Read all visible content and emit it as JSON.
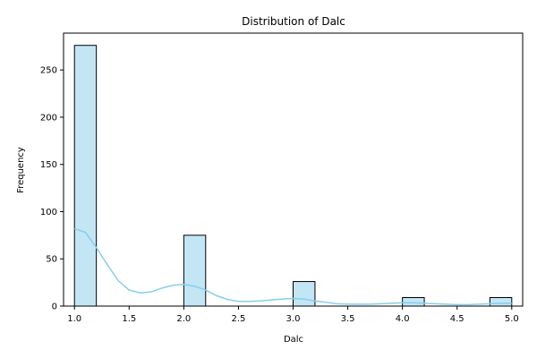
{
  "chart_data": {
    "type": "bar",
    "title": "Distribution of Dalc",
    "xlabel": "Dalc",
    "ylabel": "Frequency",
    "xlim": [
      0.9,
      5.1
    ],
    "ylim": [
      0,
      289
    ],
    "x_ticks": [
      1.0,
      1.5,
      2.0,
      2.5,
      3.0,
      3.5,
      4.0,
      4.5,
      5.0
    ],
    "x_tick_labels": [
      "1.0",
      "1.5",
      "2.0",
      "2.5",
      "3.0",
      "3.5",
      "4.0",
      "4.5",
      "5.0"
    ],
    "y_ticks": [
      0,
      50,
      100,
      150,
      200,
      250
    ],
    "y_tick_labels": [
      "0",
      "50",
      "100",
      "150",
      "200",
      "250"
    ],
    "bars": [
      {
        "x0": 1.0,
        "x1": 1.2,
        "value": 276
      },
      {
        "x0": 2.0,
        "x1": 2.2,
        "value": 75
      },
      {
        "x0": 3.0,
        "x1": 3.2,
        "value": 26
      },
      {
        "x0": 4.0,
        "x1": 4.2,
        "value": 9
      },
      {
        "x0": 4.8,
        "x1": 5.0,
        "value": 9
      }
    ],
    "bar_color": "#87ceeb",
    "bar_opacity": 0.5,
    "bar_edge_color": "#000000",
    "kde": {
      "color": "#87ceeb",
      "points": [
        [
          1.0,
          82
        ],
        [
          1.1,
          78
        ],
        [
          1.2,
          62
        ],
        [
          1.3,
          44
        ],
        [
          1.4,
          27
        ],
        [
          1.5,
          17
        ],
        [
          1.6,
          14
        ],
        [
          1.7,
          15
        ],
        [
          1.8,
          19
        ],
        [
          1.9,
          22
        ],
        [
          2.0,
          23
        ],
        [
          2.1,
          21
        ],
        [
          2.2,
          17
        ],
        [
          2.3,
          11
        ],
        [
          2.4,
          7
        ],
        [
          2.5,
          5
        ],
        [
          2.6,
          5
        ],
        [
          2.7,
          5.5
        ],
        [
          2.8,
          6.5
        ],
        [
          2.9,
          7.5
        ],
        [
          3.0,
          8
        ],
        [
          3.1,
          7.5
        ],
        [
          3.2,
          5.5
        ],
        [
          3.3,
          4
        ],
        [
          3.4,
          2.5
        ],
        [
          3.5,
          2
        ],
        [
          3.6,
          2
        ],
        [
          3.7,
          2
        ],
        [
          3.8,
          2.5
        ],
        [
          3.9,
          3
        ],
        [
          4.0,
          3.5
        ],
        [
          4.1,
          3.5
        ],
        [
          4.2,
          3
        ],
        [
          4.3,
          2.5
        ],
        [
          4.4,
          2
        ],
        [
          4.5,
          1.5
        ],
        [
          4.6,
          1.5
        ],
        [
          4.7,
          2
        ],
        [
          4.8,
          2.5
        ],
        [
          4.9,
          3
        ],
        [
          5.0,
          3
        ]
      ]
    }
  }
}
